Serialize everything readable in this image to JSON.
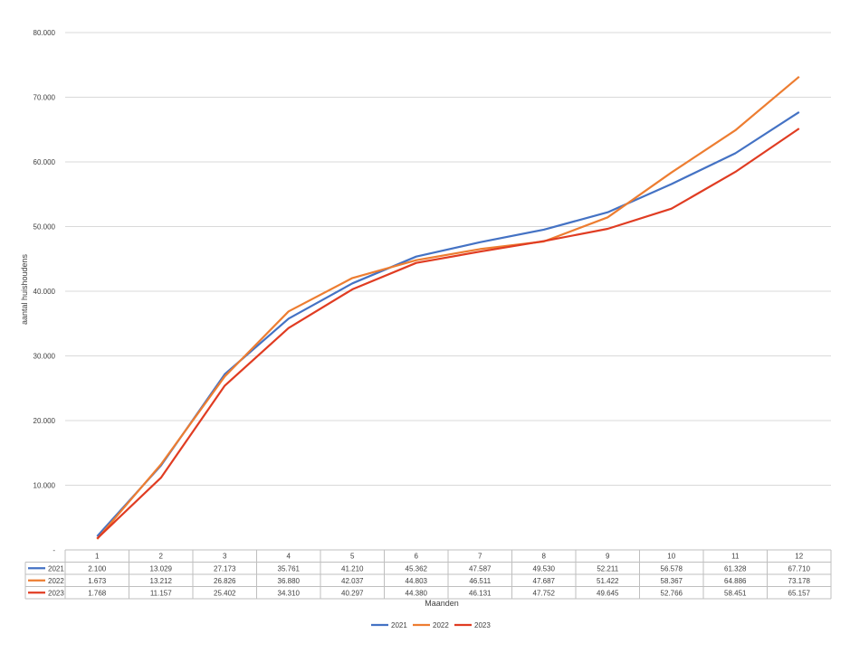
{
  "chart_data": {
    "type": "line",
    "xlabel": "Maanden",
    "ylabel": "aantal huishoudens",
    "ylim": [
      0,
      80000
    ],
    "yticks": [
      0,
      10000,
      20000,
      30000,
      40000,
      50000,
      60000,
      70000,
      80000
    ],
    "ytick_labels": [
      "-",
      "10.000",
      "20.000",
      "30.000",
      "40.000",
      "50.000",
      "60.000",
      "70.000",
      "80.000"
    ],
    "grid": true,
    "legend_position": "bottom",
    "data_table": true,
    "categories": [
      "1",
      "2",
      "3",
      "4",
      "5",
      "6",
      "7",
      "8",
      "9",
      "10",
      "11",
      "12"
    ],
    "series": [
      {
        "name": "2021",
        "color": "#4472c4",
        "values": [
          2100,
          13029,
          27173,
          35761,
          41210,
          45362,
          47587,
          49530,
          52211,
          56578,
          61328,
          67710
        ],
        "labels": [
          "2.100",
          "13.029",
          "27.173",
          "35.761",
          "41.210",
          "45.362",
          "47.587",
          "49.530",
          "52.211",
          "56.578",
          "61.328",
          "67.710"
        ]
      },
      {
        "name": "2022",
        "color": "#ed7d31",
        "values": [
          1673,
          13212,
          26826,
          36880,
          42037,
          44803,
          46511,
          47687,
          51422,
          58367,
          64886,
          73178
        ],
        "labels": [
          "1.673",
          "13.212",
          "26.826",
          "36.880",
          "42.037",
          "44.803",
          "46.511",
          "47.687",
          "51.422",
          "58.367",
          "64.886",
          "73.178"
        ]
      },
      {
        "name": "2023",
        "color": "#e03c22",
        "values": [
          1768,
          11157,
          25402,
          34310,
          40297,
          44380,
          46131,
          47752,
          49645,
          52766,
          58451,
          65157
        ],
        "labels": [
          "1.768",
          "11.157",
          "25.402",
          "34.310",
          "40.297",
          "44.380",
          "46.131",
          "47.752",
          "49.645",
          "52.766",
          "58.451",
          "65.157"
        ]
      }
    ]
  }
}
